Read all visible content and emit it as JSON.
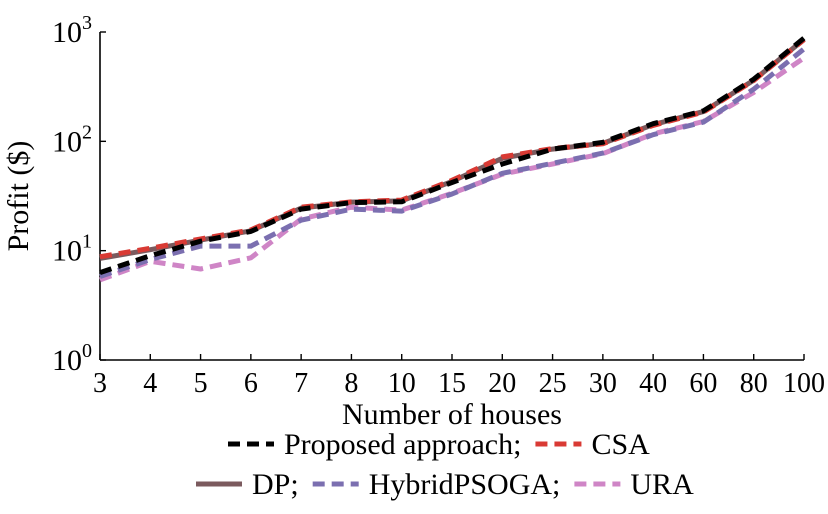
{
  "chart_data": {
    "type": "line",
    "xlabel": "Number of houses",
    "ylabel": "Profit ($)",
    "yscale": "log",
    "ylim": [
      1,
      1000
    ],
    "categories": [
      "3",
      "4",
      "5",
      "6",
      "7",
      "8",
      "10",
      "15",
      "20",
      "25",
      "30",
      "40",
      "60",
      "80",
      "100"
    ],
    "yticks": [
      {
        "base": "10",
        "exp": "0"
      },
      {
        "base": "10",
        "exp": "1"
      },
      {
        "base": "10",
        "exp": "2"
      },
      {
        "base": "10",
        "exp": "3"
      }
    ],
    "grid": false,
    "legend_position": "bottom",
    "legend_separator": ";",
    "series": [
      {
        "name": "Proposed approach",
        "color": "#000000",
        "style": "dashed",
        "values": [
          6.3,
          9.0,
          12.2,
          15.0,
          24.0,
          27.5,
          28.0,
          42.0,
          62.0,
          85.0,
          98.0,
          145.0,
          190.0,
          370.0,
          880.0
        ]
      },
      {
        "name": "CSA",
        "color": "#d93a34",
        "style": "dashed",
        "values": [
          8.8,
          10.5,
          12.8,
          15.5,
          25.0,
          28.0,
          29.0,
          44.0,
          72.0,
          86.0,
          95.0,
          140.0,
          185.0,
          360.0,
          850.0
        ]
      },
      {
        "name": "DP",
        "color": "#7b5a5e",
        "style": "solid",
        "values": [
          8.5,
          10.2,
          12.5,
          15.2,
          24.5,
          27.8,
          28.5,
          43.0,
          70.0,
          85.0,
          96.0,
          142.0,
          187.0,
          362.0,
          855.0
        ]
      },
      {
        "name": "HybridPSOGA",
        "color": "#7b6fb0",
        "style": "dashed",
        "values": [
          5.8,
          8.3,
          11.0,
          11.0,
          19.0,
          24.0,
          23.0,
          33.0,
          51.0,
          63.0,
          78.0,
          115.0,
          150.0,
          300.0,
          700.0
        ]
      },
      {
        "name": "URA",
        "color": "#cf85c6",
        "style": "dashed",
        "values": [
          5.4,
          8.0,
          6.8,
          8.6,
          19.5,
          25.0,
          23.5,
          33.5,
          50.0,
          62.0,
          77.0,
          117.0,
          152.0,
          280.0,
          580.0
        ]
      }
    ]
  }
}
